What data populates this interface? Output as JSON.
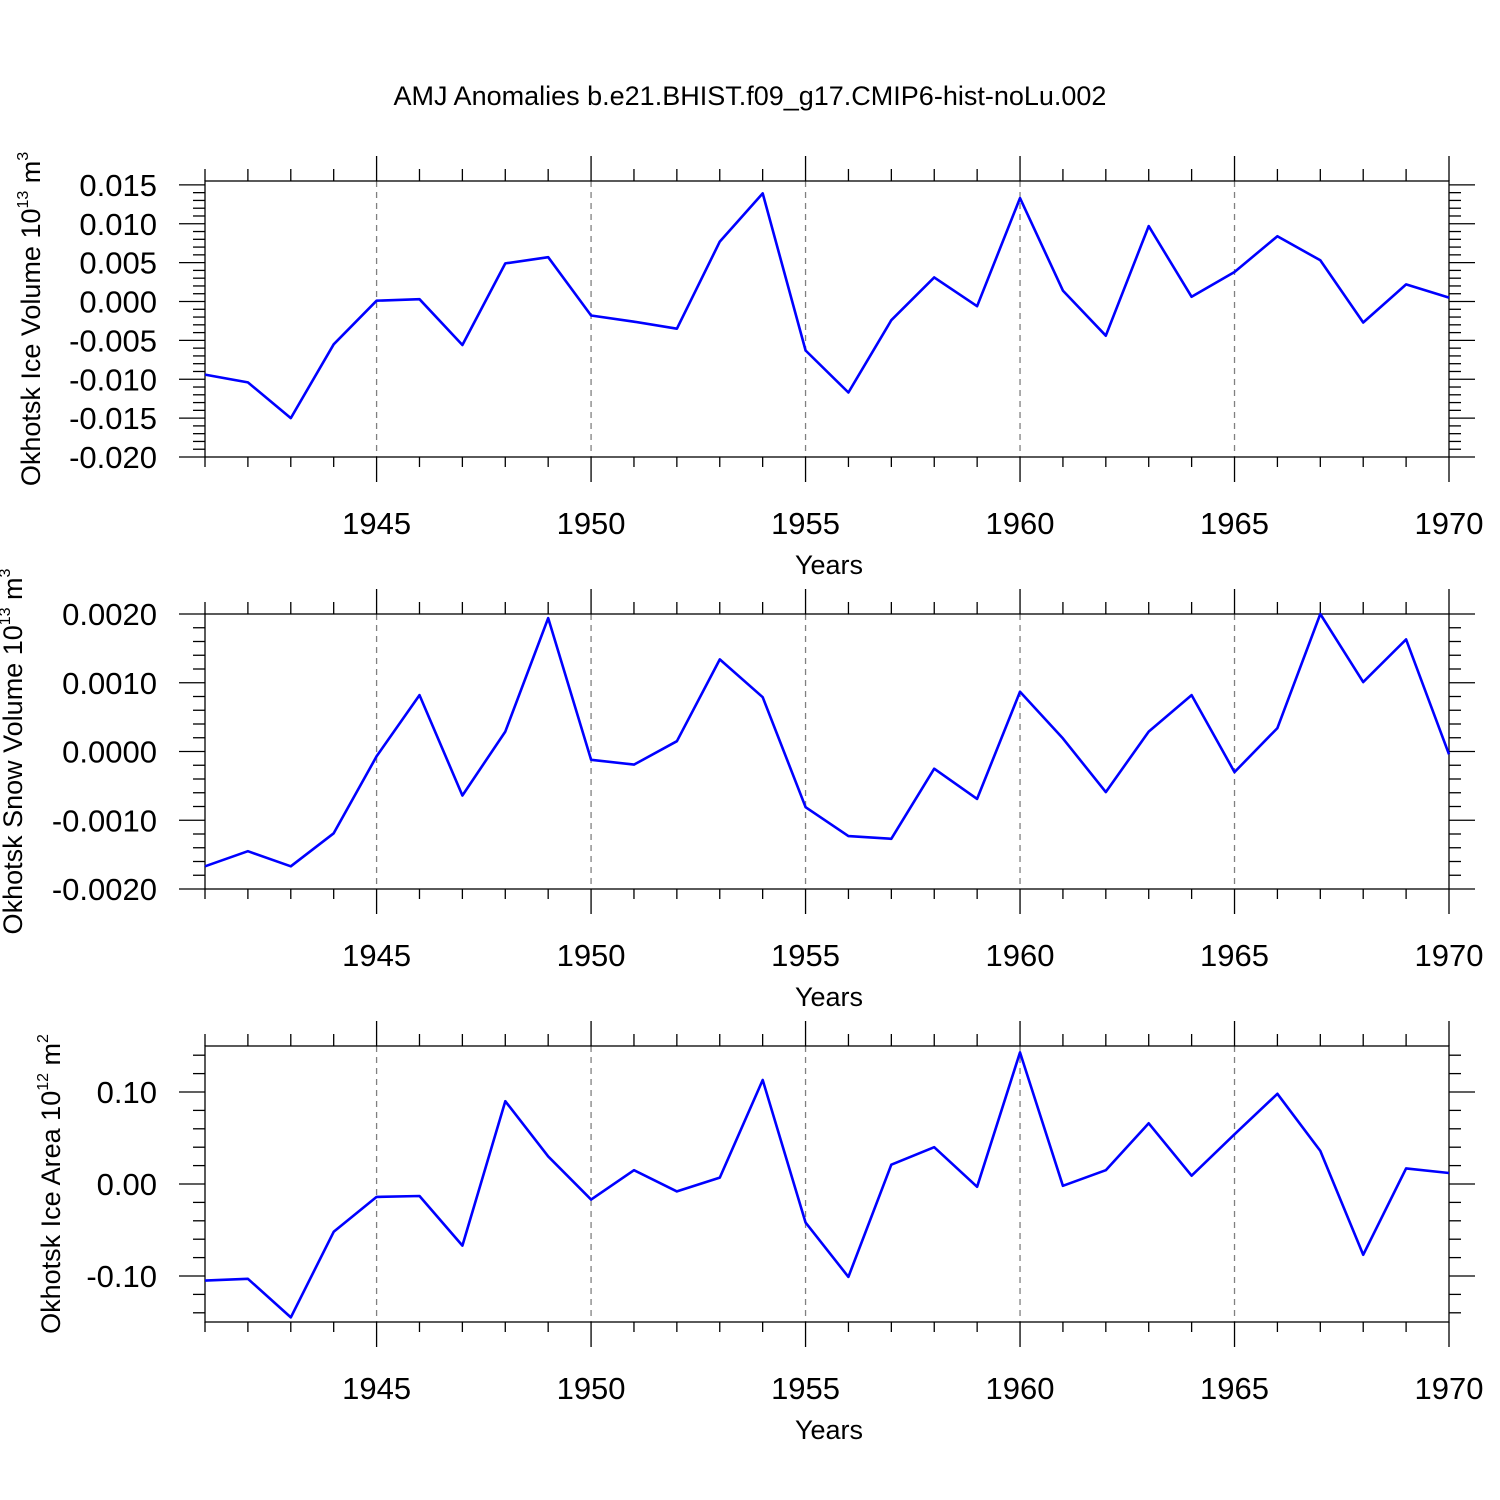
{
  "title": "AMJ Anomalies b.e21.BHIST.f09_g17.CMIP6-hist-noLu.002",
  "colors": {
    "line": "#0000ff",
    "axis": "#000000",
    "grid": "#808080"
  },
  "chart_data": [
    {
      "type": "line",
      "xlabel": "Years",
      "ylabel": {
        "main": "Okhotsk Ice Volume 10",
        "exp": "13",
        "unit": " m",
        "unit_exp": "3"
      },
      "xlim": [
        1941,
        1970
      ],
      "xticks": [
        1945,
        1950,
        1955,
        1960,
        1965,
        1970
      ],
      "ylim": [
        -0.02,
        0.0155
      ],
      "yticks": [
        "0.015",
        "0.010",
        "0.005",
        "0.000",
        "-0.005",
        "-0.010",
        "-0.015",
        "-0.020"
      ],
      "grid": "vertical dashed at major x ticks",
      "x": [
        1941,
        1942,
        1943,
        1944,
        1945,
        1946,
        1947,
        1948,
        1949,
        1950,
        1951,
        1952,
        1953,
        1954,
        1955,
        1956,
        1957,
        1958,
        1959,
        1960,
        1961,
        1962,
        1963,
        1964,
        1965,
        1966,
        1967,
        1968,
        1969,
        1970
      ],
      "values": [
        -0.0094,
        -0.0104,
        -0.015,
        -0.0055,
        0.0001,
        0.0003,
        -0.0056,
        0.0049,
        0.0057,
        -0.0018,
        -0.0026,
        -0.0035,
        0.0077,
        0.0139,
        -0.0063,
        -0.0117,
        -0.0024,
        0.0031,
        -0.0006,
        0.0133,
        0.0014,
        -0.0044,
        0.0097,
        0.0006,
        0.0038,
        0.0084,
        0.0053,
        -0.0027,
        0.0022,
        0.0005
      ]
    },
    {
      "type": "line",
      "xlabel": "Years",
      "ylabel": {
        "main": "Okhotsk Snow Volume 10",
        "exp": "13",
        "unit": " m",
        "unit_exp": "3"
      },
      "xlim": [
        1941,
        1970
      ],
      "xticks": [
        1945,
        1950,
        1955,
        1960,
        1965,
        1970
      ],
      "ylim": [
        -0.002,
        0.002
      ],
      "yticks": [
        "0.0020",
        "0.0010",
        "0.0000",
        "-0.0010",
        "-0.0020"
      ],
      "grid": "vertical dashed at major x ticks",
      "x": [
        1941,
        1942,
        1943,
        1944,
        1945,
        1946,
        1947,
        1948,
        1949,
        1950,
        1951,
        1952,
        1953,
        1954,
        1955,
        1956,
        1957,
        1958,
        1959,
        1960,
        1961,
        1962,
        1963,
        1964,
        1965,
        1966,
        1967,
        1968,
        1969,
        1970
      ],
      "values": [
        -0.00167,
        -0.00145,
        -0.00167,
        -0.00119,
        -7e-05,
        0.00082,
        -0.00064,
        0.00029,
        0.00194,
        -0.00012,
        -0.00019,
        0.00015,
        0.00134,
        0.00079,
        -0.00081,
        -0.00123,
        -0.00127,
        -0.00025,
        -0.00069,
        0.00087,
        0.00019,
        -0.00059,
        0.00029,
        0.00082,
        -0.0003,
        0.00034,
        0.002,
        0.00101,
        0.00163,
        -4e-05
      ]
    },
    {
      "type": "line",
      "xlabel": "Years",
      "ylabel": {
        "main": "Okhotsk Ice Area 10",
        "exp": "12",
        "unit": " m",
        "unit_exp": "2"
      },
      "xlim": [
        1941,
        1970
      ],
      "xticks": [
        1945,
        1950,
        1955,
        1960,
        1965,
        1970
      ],
      "ylim": [
        -0.15,
        0.15
      ],
      "yticks": [
        "0.10",
        "0.00",
        "-0.10"
      ],
      "grid": "vertical dashed at major x ticks",
      "x": [
        1941,
        1942,
        1943,
        1944,
        1945,
        1946,
        1947,
        1948,
        1949,
        1950,
        1951,
        1952,
        1953,
        1954,
        1955,
        1956,
        1957,
        1958,
        1959,
        1960,
        1961,
        1962,
        1963,
        1964,
        1965,
        1966,
        1967,
        1968,
        1969,
        1970
      ],
      "values": [
        -0.105,
        -0.103,
        -0.145,
        -0.052,
        -0.014,
        -0.013,
        -0.067,
        0.09,
        0.03,
        -0.017,
        0.015,
        -0.008,
        0.007,
        0.113,
        -0.042,
        -0.101,
        0.021,
        0.04,
        -0.003,
        0.143,
        -0.002,
        0.015,
        0.066,
        0.009,
        0.054,
        0.098,
        0.036,
        -0.077,
        0.017,
        0.012
      ]
    }
  ]
}
